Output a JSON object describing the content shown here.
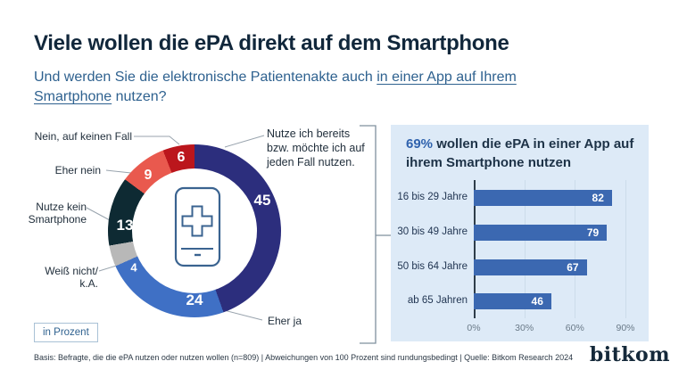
{
  "header": {
    "title": "Viele wollen die ePA direkt auf dem Smartphone",
    "question_before": "Und werden Sie die elektronische Patientenakte auch",
    "question_underline_a": "in einer App auf Ihrem",
    "question_underline_b": "Smartphone",
    "question_after": "nutzen?"
  },
  "chart_data": [
    {
      "type": "pie",
      "subtype": "donut",
      "unit_label": "in Prozent",
      "center_icon": "smartphone-with-medical-cross",
      "segments": [
        {
          "label": "Nutze ich bereits\nbzw. möchte ich auf\njeden Fall nutzen.",
          "value": 45,
          "color": "#2c2e7d"
        },
        {
          "label": "Eher ja",
          "value": 24,
          "color": "#3f70c5"
        },
        {
          "label": "Weiß nicht/\nk.A.",
          "value": 4,
          "color": "#b8b8b8"
        },
        {
          "label": "Nutze kein\nSmartphone",
          "value": 13,
          "color": "#0e2a33"
        },
        {
          "label": "Eher nein",
          "value": 9,
          "color": "#e9594e"
        },
        {
          "label": "Nein, auf keinen Fall",
          "value": 6,
          "color": "#bb161c"
        }
      ]
    },
    {
      "type": "bar",
      "orientation": "horizontal",
      "title": "69% wollen die ePA in einer App auf ihrem Smartphone nutzen",
      "headline_value": "69%",
      "headline_line1": "wollen die ePA in einer App auf",
      "headline_line2": "ihrem Smartphone nutzen",
      "categories": [
        "16 bis 29 Jahre",
        "30 bis 49 Jahre",
        "50 bis 64 Jahre",
        "ab 65 Jahren"
      ],
      "values": [
        82,
        79,
        67,
        46
      ],
      "xticks": [
        "0%",
        "30%",
        "60%",
        "90%"
      ],
      "xlim": [
        0,
        90
      ],
      "bar_color": "#3b68b1",
      "panel_bg": "#ddeaf7",
      "grid": true,
      "legend": "none"
    }
  ],
  "footer": {
    "note": "Basis: Befragte, die die ePA nutzen oder nutzen wollen (n=809) | Abweichungen von 100 Prozent sind rundungsbedingt | Quelle: Bitkom Research 2024",
    "logo": "bitkom"
  }
}
